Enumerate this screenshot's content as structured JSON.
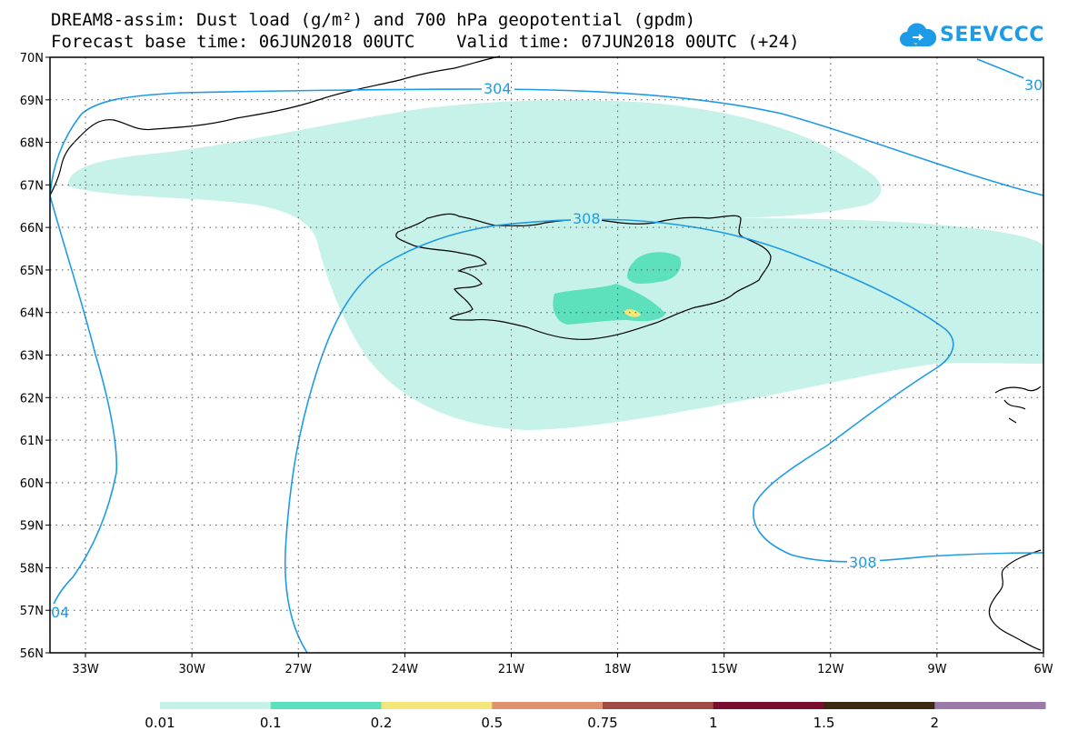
{
  "title": {
    "line1": "DREAM8-assim: Dust load (g/m²) and 700 hPa geopotential (gpdm)",
    "line2": "Forecast base time: 06JUN2018 00UTC    Valid time: 07JUN2018 00UTC (+24)"
  },
  "logo": {
    "text": "SEEVCCC",
    "icon": "cloud-icon",
    "color": "#1e9be6"
  },
  "map": {
    "lon_range": [
      -34,
      -6
    ],
    "lat_range": [
      56,
      70
    ],
    "lat_ticks": [
      "70N",
      "69N",
      "68N",
      "67N",
      "66N",
      "65N",
      "64N",
      "63N",
      "62N",
      "61N",
      "60N",
      "59N",
      "58N",
      "57N",
      "56N"
    ],
    "lon_ticks": [
      "33W",
      "30W",
      "27W",
      "24W",
      "21W",
      "18W",
      "15W",
      "12W",
      "9W",
      "6W"
    ],
    "grid": "dotted",
    "contour_color": "#1e9be6",
    "contour_labels": [
      "304",
      "308",
      "308",
      "30",
      "04"
    ]
  },
  "colorbar": {
    "labels": [
      "0.01",
      "0.1",
      "0.2",
      "0.5",
      "0.75",
      "1",
      "1.5",
      "2"
    ],
    "colors": [
      "#c6f2ea",
      "#5ce1bc",
      "#f5e67a",
      "#e0926e",
      "#a04a44",
      "#7a0c2e",
      "#3b2a10",
      "#9a78a8"
    ]
  }
}
